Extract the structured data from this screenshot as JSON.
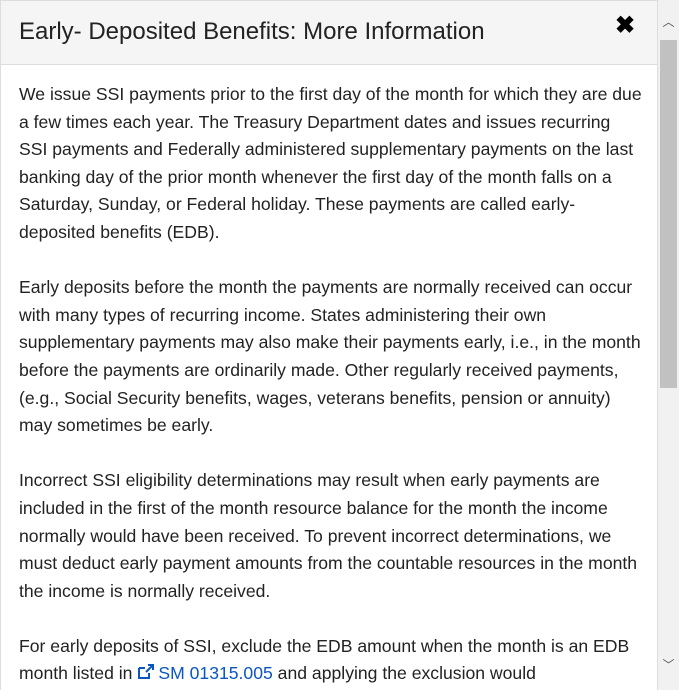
{
  "modal": {
    "title": "Early- Deposited Benefits: More Information",
    "close_icon": "close-x-icon",
    "paragraphs": [
      "We issue SSI payments prior to the first day of the month for which they are due a few times each year. The Treasury Department dates and issues recurring SSI payments and Federally administered supplementary payments on the last banking day of the prior month whenever the first day of the month falls on a Saturday, Sunday, or Federal holiday. These payments are called early-deposited benefits (EDB).",
      "Early deposits before the month the payments are normally received can occur with many types of recurring income. States administering their own supplementary payments may also make their payments early, i.e., in the month before the payments are ordinarily made. Other regularly received payments, (e.g., Social Security benefits, wages, veterans benefits, pension or annuity) may sometimes be early.",
      "Incorrect SSI eligibility determinations may result when early payments are included in the first of the month resource balance for the month the income normally would have been received. To prevent incorrect determinations, we must deduct early payment amounts from the countable resources in the month the income is normally received."
    ],
    "last_paragraph": {
      "before": "For early deposits of SSI, exclude the EDB amount when the month is an EDB month listed in ",
      "link": "SM 01315.005",
      "link_icon": "external-link-icon",
      "after": " and applying the exclusion would"
    }
  },
  "colors": {
    "link": "#0a55c2",
    "header_bg": "#f5f5f5"
  }
}
